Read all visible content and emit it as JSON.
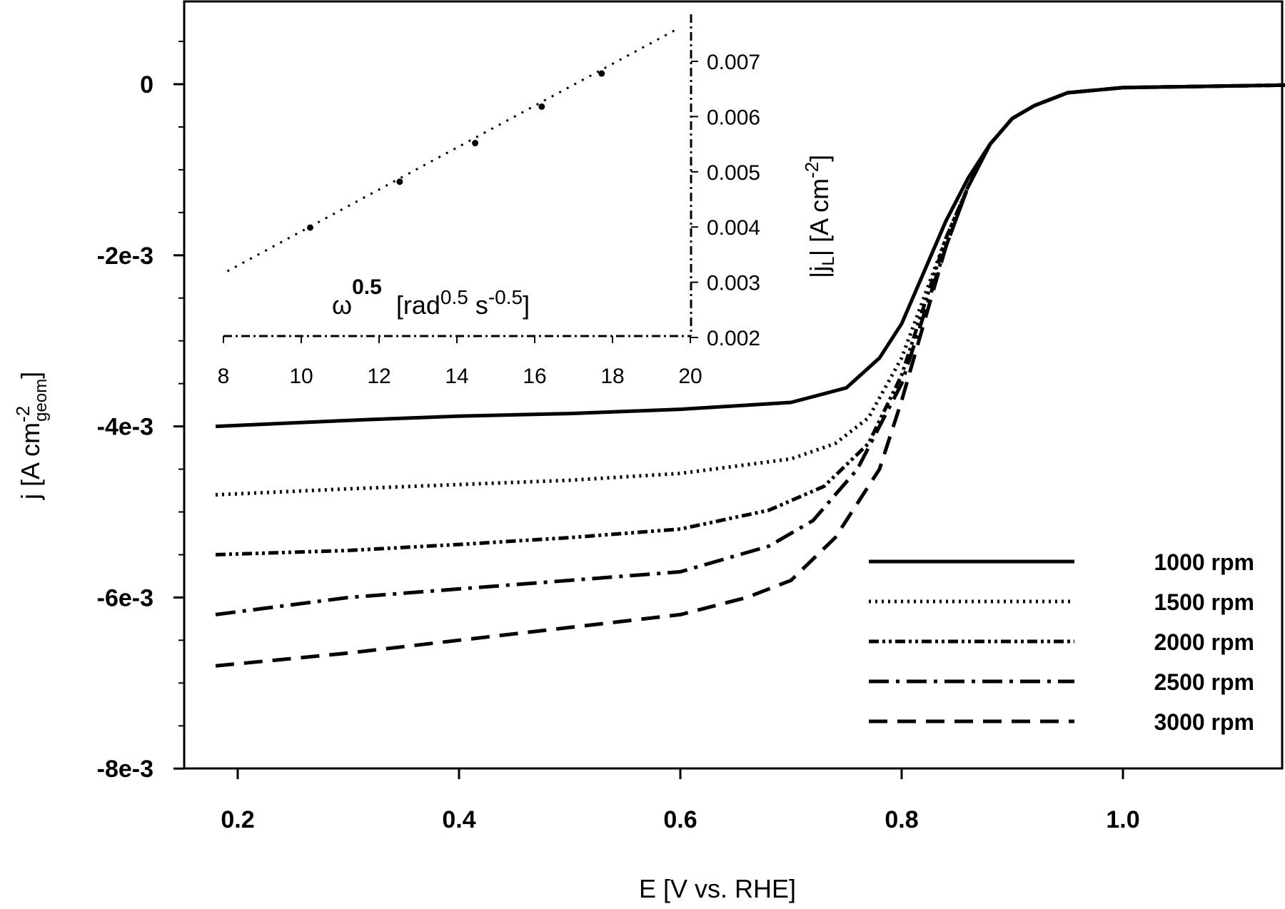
{
  "chart_data": [
    {
      "type": "line",
      "title": "",
      "xlabel": "E [V vs. RHE]",
      "ylabel": "j [A cm^-2 geom]",
      "ylabel_parts": {
        "main": "j [A cm",
        "sup": "-2",
        "sub": "geom",
        "close": "]"
      },
      "xlim": [
        0.15,
        1.15
      ],
      "ylim": [
        -0.008,
        0.0005
      ],
      "x_ticks": [
        0.2,
        0.4,
        0.6,
        0.8,
        1.0
      ],
      "x_tick_labels": [
        "0.2",
        "0.4",
        "0.6",
        "0.8",
        "1.0"
      ],
      "y_ticks": [
        0,
        -0.002,
        -0.004,
        -0.006,
        -0.008
      ],
      "y_tick_labels": [
        "0",
        "-2e-3",
        "-4e-3",
        "-6e-3",
        "-8e-3"
      ],
      "grid": false,
      "legend_position": "lower right",
      "series": [
        {
          "name": "1000 rpm",
          "style": "solid",
          "x": [
            0.18,
            0.3,
            0.4,
            0.5,
            0.6,
            0.7,
            0.75,
            0.78,
            0.8,
            0.82,
            0.84,
            0.86,
            0.88,
            0.9,
            0.92,
            0.95,
            1.0,
            1.1,
            1.15
          ],
          "y": [
            -0.004,
            -0.00393,
            -0.00388,
            -0.00385,
            -0.0038,
            -0.00372,
            -0.00355,
            -0.0032,
            -0.0028,
            -0.0022,
            -0.0016,
            -0.0011,
            -0.0007,
            -0.0004,
            -0.00025,
            -0.0001,
            -4e-05,
            -2e-05,
            -1e-05
          ]
        },
        {
          "name": "1500 rpm",
          "style": "dotted",
          "x": [
            0.18,
            0.3,
            0.4,
            0.5,
            0.6,
            0.7,
            0.74,
            0.77,
            0.8,
            0.82,
            0.84,
            0.86,
            0.88,
            0.9,
            0.92,
            0.95,
            1.0,
            1.1,
            1.15
          ],
          "y": [
            -0.0048,
            -0.00473,
            -0.00468,
            -0.00463,
            -0.00455,
            -0.00438,
            -0.0042,
            -0.0039,
            -0.0032,
            -0.0025,
            -0.0018,
            -0.0012,
            -0.0007,
            -0.0004,
            -0.00025,
            -0.0001,
            -4e-05,
            -2e-05,
            -1e-05
          ]
        },
        {
          "name": "2000 rpm",
          "style": "dash-dot-dot",
          "x": [
            0.18,
            0.3,
            0.4,
            0.5,
            0.6,
            0.68,
            0.73,
            0.77,
            0.8,
            0.82,
            0.84,
            0.86,
            0.88,
            0.9,
            0.92,
            0.95,
            1.0,
            1.1,
            1.15
          ],
          "y": [
            -0.0055,
            -0.00545,
            -0.00538,
            -0.0053,
            -0.0052,
            -0.00498,
            -0.0047,
            -0.0042,
            -0.0034,
            -0.0026,
            -0.0018,
            -0.0012,
            -0.0007,
            -0.0004,
            -0.00025,
            -0.0001,
            -4e-05,
            -2e-05,
            -1e-05
          ]
        },
        {
          "name": "2500 rpm",
          "style": "dash-dot",
          "x": [
            0.18,
            0.3,
            0.4,
            0.5,
            0.6,
            0.68,
            0.72,
            0.76,
            0.8,
            0.82,
            0.84,
            0.86,
            0.88,
            0.9,
            0.92,
            0.95,
            1.0,
            1.1,
            1.15
          ],
          "y": [
            -0.0062,
            -0.006,
            -0.0059,
            -0.0058,
            -0.0057,
            -0.0054,
            -0.0051,
            -0.0045,
            -0.0035,
            -0.0027,
            -0.0019,
            -0.0012,
            -0.0007,
            -0.0004,
            -0.00025,
            -0.0001,
            -4e-05,
            -2e-05,
            -1e-05
          ]
        },
        {
          "name": "3000 rpm",
          "style": "long-dash",
          "x": [
            0.18,
            0.3,
            0.4,
            0.5,
            0.6,
            0.66,
            0.7,
            0.74,
            0.78,
            0.8,
            0.82,
            0.84,
            0.86,
            0.88,
            0.9,
            0.92,
            0.95,
            1.0,
            1.1,
            1.15
          ],
          "y": [
            -0.0068,
            -0.00665,
            -0.0065,
            -0.00635,
            -0.0062,
            -0.006,
            -0.0058,
            -0.0053,
            -0.0045,
            -0.0037,
            -0.0028,
            -0.0019,
            -0.0012,
            -0.0007,
            -0.0004,
            -0.00025,
            -0.0001,
            -4e-05,
            -2e-05,
            -1e-05
          ]
        }
      ]
    },
    {
      "type": "scatter",
      "title": "inset",
      "xlabel": "ω^0.5 [rad^0.5 s^-0.5]",
      "xlabel_parts": {
        "symbol": "ω",
        "sup1": "0.5",
        "unit_open": "[rad",
        "sup2": "0.5",
        "unit_mid": " s",
        "sup3": "-0.5",
        "unit_close": "]"
      },
      "ylabel": "|jL| [A cm^-2]",
      "ylabel_parts": {
        "main": "|j",
        "sub": "L",
        "unit": "| [A cm",
        "sup": "-2",
        "close": "]"
      },
      "xlim": [
        8,
        20
      ],
      "ylim": [
        0.002,
        0.0075
      ],
      "x_ticks": [
        8,
        10,
        12,
        14,
        16,
        18,
        20
      ],
      "x_tick_labels": [
        "8",
        "10",
        "12",
        "14",
        "16",
        "18",
        "20"
      ],
      "y_ticks": [
        0.002,
        0.003,
        0.004,
        0.005,
        0.006,
        0.007
      ],
      "y_tick_labels": [
        "0.002",
        "0.003",
        "0.004",
        "0.005",
        "0.006",
        "0.007"
      ],
      "y_axis_side": "right",
      "points": {
        "x": [
          10.23,
          12.53,
          14.47,
          16.18,
          17.72
        ],
        "y": [
          0.00399,
          0.00482,
          0.00552,
          0.00618,
          0.00678
        ]
      },
      "fit_line": {
        "x": [
          8.1,
          19.7
        ],
        "y": [
          0.0032,
          0.0076
        ],
        "style": "dotted"
      }
    }
  ],
  "legend": {
    "items": [
      {
        "label": "1000 rpm",
        "style": "solid"
      },
      {
        "label": "1500 rpm",
        "style": "dotted"
      },
      {
        "label": "2000 rpm",
        "style": "dash-dot-dot"
      },
      {
        "label": "2500 rpm",
        "style": "dash-dot"
      },
      {
        "label": "3000 rpm",
        "style": "long-dash"
      }
    ]
  },
  "colors": {
    "line": "#000000",
    "background": "#ffffff"
  }
}
